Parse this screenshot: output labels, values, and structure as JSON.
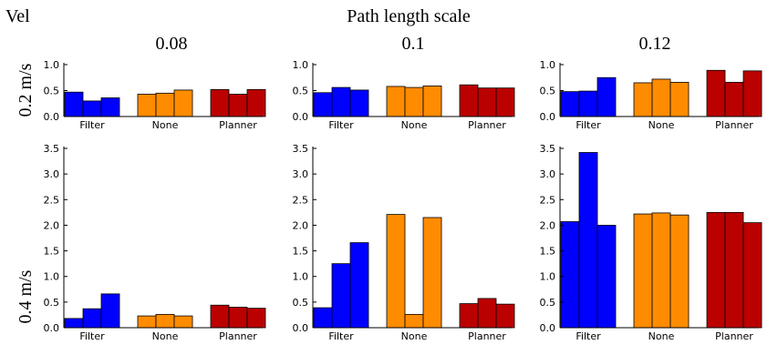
{
  "figure": {
    "corner_label": "Vel",
    "column_title": "Path length scale",
    "columns": [
      "0.08",
      "0.1",
      "0.12"
    ],
    "rows": [
      "0.2 m/s",
      "0.4 m/s"
    ]
  },
  "colors": {
    "Filter": "#0000ff",
    "None": "#ff8c00",
    "Planner": "#bb0000"
  },
  "chart_data": [
    {
      "type": "bar",
      "row": "0.2 m/s",
      "column": "0.08",
      "categories": [
        "Filter",
        "None",
        "Planner"
      ],
      "series": [
        {
          "values": [
            0.47,
            0.43,
            0.52
          ]
        },
        {
          "values": [
            0.3,
            0.45,
            0.43
          ]
        },
        {
          "values": [
            0.36,
            0.51,
            0.52
          ]
        }
      ],
      "ylim": [
        0,
        1.0
      ],
      "yticks": [
        "0.0",
        "0.5",
        "1.0"
      ]
    },
    {
      "type": "bar",
      "row": "0.2 m/s",
      "column": "0.1",
      "categories": [
        "Filter",
        "None",
        "Planner"
      ],
      "series": [
        {
          "values": [
            0.46,
            0.58,
            0.61
          ]
        },
        {
          "values": [
            0.56,
            0.56,
            0.55
          ]
        },
        {
          "values": [
            0.51,
            0.59,
            0.55
          ]
        }
      ],
      "ylim": [
        0,
        1.0
      ],
      "yticks": [
        "0.0",
        "0.5",
        "1.0"
      ]
    },
    {
      "type": "bar",
      "row": "0.2 m/s",
      "column": "0.12",
      "categories": [
        "Filter",
        "None",
        "Planner"
      ],
      "series": [
        {
          "values": [
            0.48,
            0.65,
            0.89
          ]
        },
        {
          "values": [
            0.49,
            0.72,
            0.66
          ]
        },
        {
          "values": [
            0.75,
            0.66,
            0.88
          ]
        }
      ],
      "ylim": [
        0,
        1.0
      ],
      "yticks": [
        "0.0",
        "0.5",
        "1.0"
      ]
    },
    {
      "type": "bar",
      "row": "0.4 m/s",
      "column": "0.08",
      "categories": [
        "Filter",
        "None",
        "Planner"
      ],
      "series": [
        {
          "values": [
            0.18,
            0.23,
            0.44
          ]
        },
        {
          "values": [
            0.37,
            0.26,
            0.4
          ]
        },
        {
          "values": [
            0.66,
            0.23,
            0.38
          ]
        }
      ],
      "ylim": [
        0,
        3.5
      ],
      "yticks": [
        "0.0",
        "0.5",
        "1.0",
        "1.5",
        "2.0",
        "2.5",
        "3.0",
        "3.5"
      ]
    },
    {
      "type": "bar",
      "row": "0.4 m/s",
      "column": "0.1",
      "categories": [
        "Filter",
        "None",
        "Planner"
      ],
      "series": [
        {
          "values": [
            0.39,
            2.21,
            0.47
          ]
        },
        {
          "values": [
            1.25,
            0.26,
            0.57
          ]
        },
        {
          "values": [
            1.66,
            2.15,
            0.46
          ]
        }
      ],
      "ylim": [
        0,
        3.5
      ],
      "yticks": [
        "0.0",
        "0.5",
        "1.0",
        "1.5",
        "2.0",
        "2.5",
        "3.0",
        "3.5"
      ]
    },
    {
      "type": "bar",
      "row": "0.4 m/s",
      "column": "0.12",
      "categories": [
        "Filter",
        "None",
        "Planner"
      ],
      "series": [
        {
          "values": [
            2.07,
            2.22,
            2.25
          ]
        },
        {
          "values": [
            3.42,
            2.24,
            2.25
          ]
        },
        {
          "values": [
            2.0,
            2.2,
            2.05
          ]
        }
      ],
      "ylim": [
        0,
        3.5
      ],
      "yticks": [
        "0.0",
        "0.5",
        "1.0",
        "1.5",
        "2.0",
        "2.5",
        "3.0",
        "3.5"
      ]
    }
  ]
}
